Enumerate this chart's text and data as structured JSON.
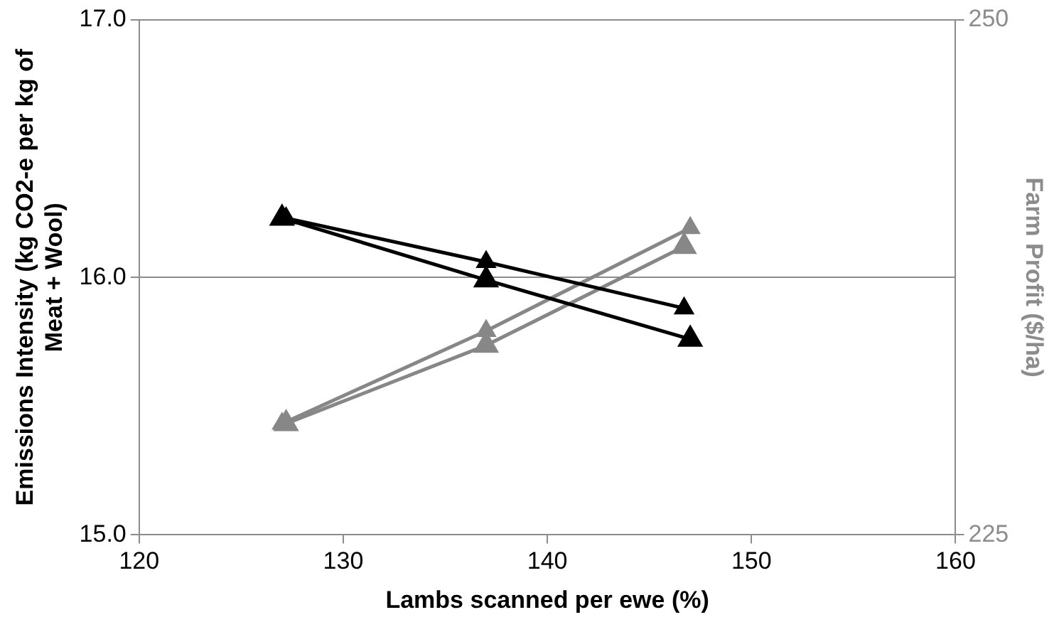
{
  "chart_data": {
    "type": "line",
    "xlabel": "Lambs scanned per ewe (%)",
    "ylabel": "Emissions Intensity (kg CO2-e per kg of Meat + Wool)",
    "y2label": "Farm Profit ($/ha)",
    "xlim": [
      120,
      160
    ],
    "xticks": [
      120,
      130,
      140,
      150,
      160
    ],
    "ylim": [
      15,
      17
    ],
    "yticks": [
      {
        "value": 15,
        "label": "15.0"
      },
      {
        "value": 16,
        "label": "16.0"
      },
      {
        "value": 17,
        "label": "17.0"
      }
    ],
    "y2lim": [
      225,
      250
    ],
    "y2ticks": [
      225,
      250
    ],
    "grid": "y",
    "legend": false,
    "marker": "triangle",
    "line_style": "solid",
    "series": [
      {
        "color": "#000000",
        "x": [
          127.2,
          137,
          146.7
        ],
        "values": [
          16.23,
          16.06,
          15.88
        ]
      },
      {
        "color": "#000000",
        "x": [
          127,
          137,
          147
        ],
        "values": [
          16.23,
          15.99,
          15.76
        ]
      },
      {
        "color": "#878787",
        "axis": "y2",
        "x": [
          127,
          137,
          147
        ],
        "values": [
          230.4,
          234.9,
          239.9
        ]
      },
      {
        "color": "#878787",
        "axis": "y2",
        "x": [
          127.2,
          137,
          146.7
        ],
        "values": [
          230.4,
          234.2,
          239.0
        ]
      }
    ]
  }
}
